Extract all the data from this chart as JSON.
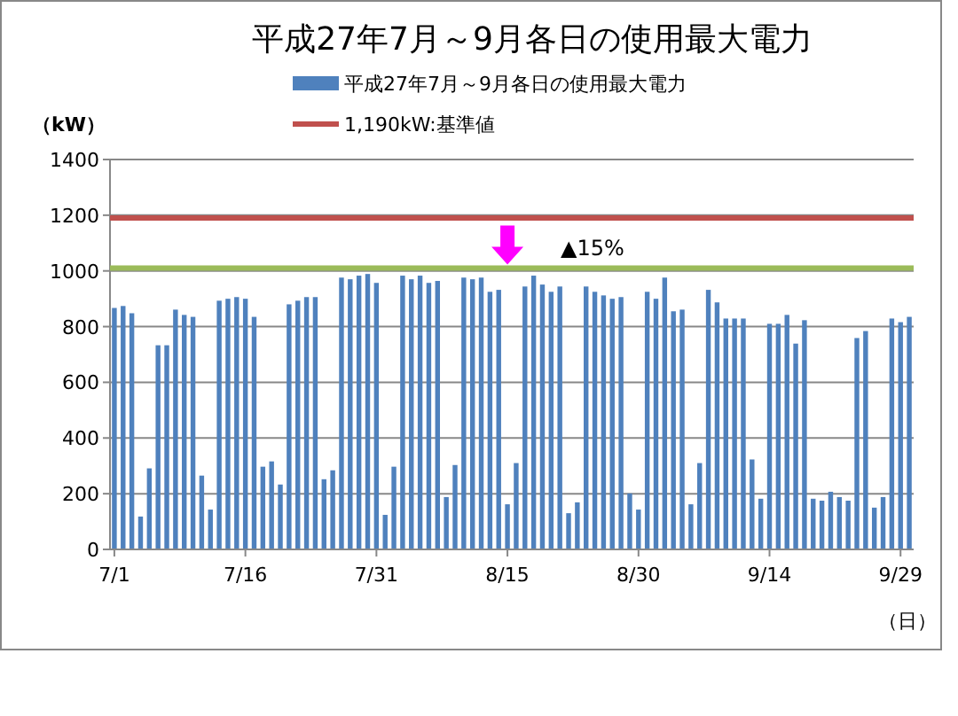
{
  "chart_data": {
    "type": "bar",
    "title": "平成27年7月～9月各日の使用最大電力",
    "ylabel": "（kW）",
    "xlabel": "（日）",
    "categories": [
      "7/1",
      null,
      null,
      null,
      null,
      null,
      null,
      null,
      null,
      null,
      null,
      null,
      null,
      null,
      null,
      "7/16",
      null,
      null,
      null,
      null,
      null,
      null,
      null,
      null,
      null,
      null,
      null,
      null,
      null,
      null,
      "7/31",
      null,
      null,
      null,
      null,
      null,
      null,
      null,
      null,
      null,
      null,
      null,
      null,
      null,
      null,
      "8/15",
      null,
      null,
      null,
      null,
      null,
      null,
      null,
      null,
      null,
      null,
      null,
      null,
      null,
      null,
      "8/30",
      null,
      null,
      null,
      null,
      null,
      null,
      null,
      null,
      null,
      null,
      null,
      null,
      null,
      null,
      "9/14",
      null,
      null,
      null,
      null,
      null,
      null,
      null,
      null,
      null,
      null,
      null,
      null,
      null,
      null,
      "9/29",
      null
    ],
    "series": [
      {
        "name": "平成27年7月～9月各日の使用最大電力",
        "color": "#4f81bd",
        "values": [
          867,
          874,
          848,
          118,
          291,
          733,
          733,
          861,
          842,
          835,
          265,
          143,
          893,
          900,
          906,
          900,
          835,
          297,
          316,
          233,
          880,
          893,
          906,
          906,
          252,
          284,
          976,
          970,
          983,
          989,
          957,
          124,
          297,
          983,
          970,
          983,
          957,
          964,
          188,
          303,
          976,
          970,
          976,
          925,
          932,
          162,
          310,
          944,
          983,
          951,
          925,
          944,
          130,
          169,
          944,
          925,
          912,
          900,
          906,
          201,
          143,
          925,
          900,
          976,
          855,
          861,
          162,
          310,
          932,
          887,
          829,
          829,
          829,
          323,
          182,
          810,
          810,
          842,
          739,
          823,
          182,
          175,
          207,
          188,
          175,
          759,
          784,
          150,
          188,
          829,
          816,
          835
        ]
      }
    ],
    "ylim": [
      0,
      1400
    ],
    "yticks": [
      0,
      200,
      400,
      600,
      800,
      1000,
      1200,
      1400
    ],
    "grid": "y",
    "legend": "top",
    "ref_lines": [
      {
        "axis": "y",
        "value": 1190,
        "label": "1,190kW:基準値",
        "color": "#c0504d"
      },
      {
        "axis": "y",
        "value": 1010,
        "label": null,
        "color": "#9bbb59"
      }
    ],
    "annotations": [
      "▲15%"
    ]
  }
}
